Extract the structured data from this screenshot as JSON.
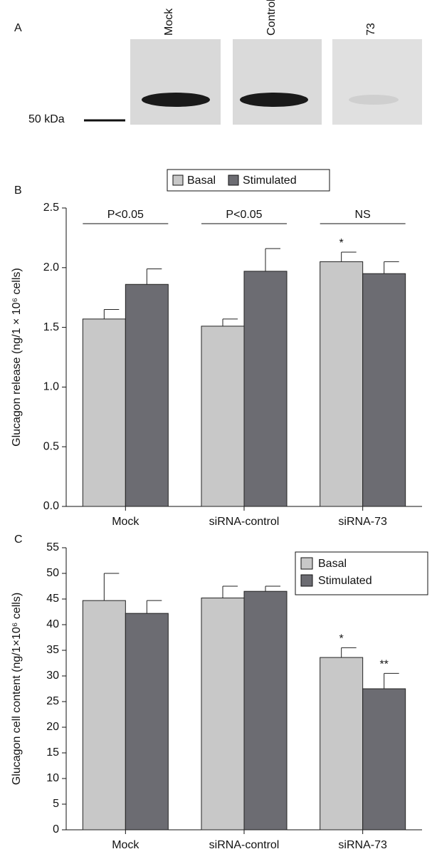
{
  "blot": {
    "panel": "A",
    "lanes": [
      "Mock",
      "Control",
      "73"
    ],
    "marker": "50 kDa"
  },
  "chart_data": [
    {
      "type": "bar",
      "panel": "B",
      "ylabel": "Glucagon release (ng/1 × 10⁶ cells)",
      "categories": [
        "Mock",
        "siRNA-control",
        "siRNA-73"
      ],
      "series": [
        {
          "name": "Basal",
          "color": "#c8c8c8",
          "values": [
            1.57,
            1.51,
            2.05
          ],
          "errors": [
            0.08,
            0.06,
            0.08
          ],
          "markers": [
            null,
            null,
            "*"
          ]
        },
        {
          "name": "Stimulated",
          "color": "#6c6c72",
          "values": [
            1.86,
            1.97,
            1.95
          ],
          "errors": [
            0.13,
            0.19,
            0.1
          ],
          "markers": [
            null,
            null,
            null
          ]
        }
      ],
      "group_labels": [
        "P<0.05",
        "P<0.05",
        "NS"
      ],
      "ylim": [
        0,
        2.5
      ],
      "yticks": [
        {
          "value": 0,
          "label": "0.0"
        },
        0.5,
        {
          "value": 1,
          "label": "1.0"
        },
        1.5,
        {
          "value": 2,
          "label": "2.0"
        },
        2.5
      ],
      "legend": "top"
    },
    {
      "type": "bar",
      "panel": "C",
      "ylabel": "Glucagon cell content (ng/1×10⁶ cells)",
      "categories": [
        "Mock",
        "siRNA-control",
        "siRNA-73"
      ],
      "series": [
        {
          "name": "Basal",
          "color": "#c8c8c8",
          "values": [
            44.7,
            45.2,
            33.6
          ],
          "errors": [
            5.3,
            2.3,
            1.9
          ],
          "markers": [
            null,
            null,
            "*"
          ]
        },
        {
          "name": "Stimulated",
          "color": "#6c6c72",
          "values": [
            42.2,
            46.5,
            27.5
          ],
          "errors": [
            2.5,
            1.0,
            3.0
          ],
          "markers": [
            null,
            null,
            "**"
          ]
        }
      ],
      "ylim": [
        0,
        55
      ],
      "yticks": [
        0,
        5,
        10,
        15,
        20,
        25,
        30,
        35,
        40,
        45,
        50,
        55
      ],
      "legend": "top-right"
    }
  ]
}
